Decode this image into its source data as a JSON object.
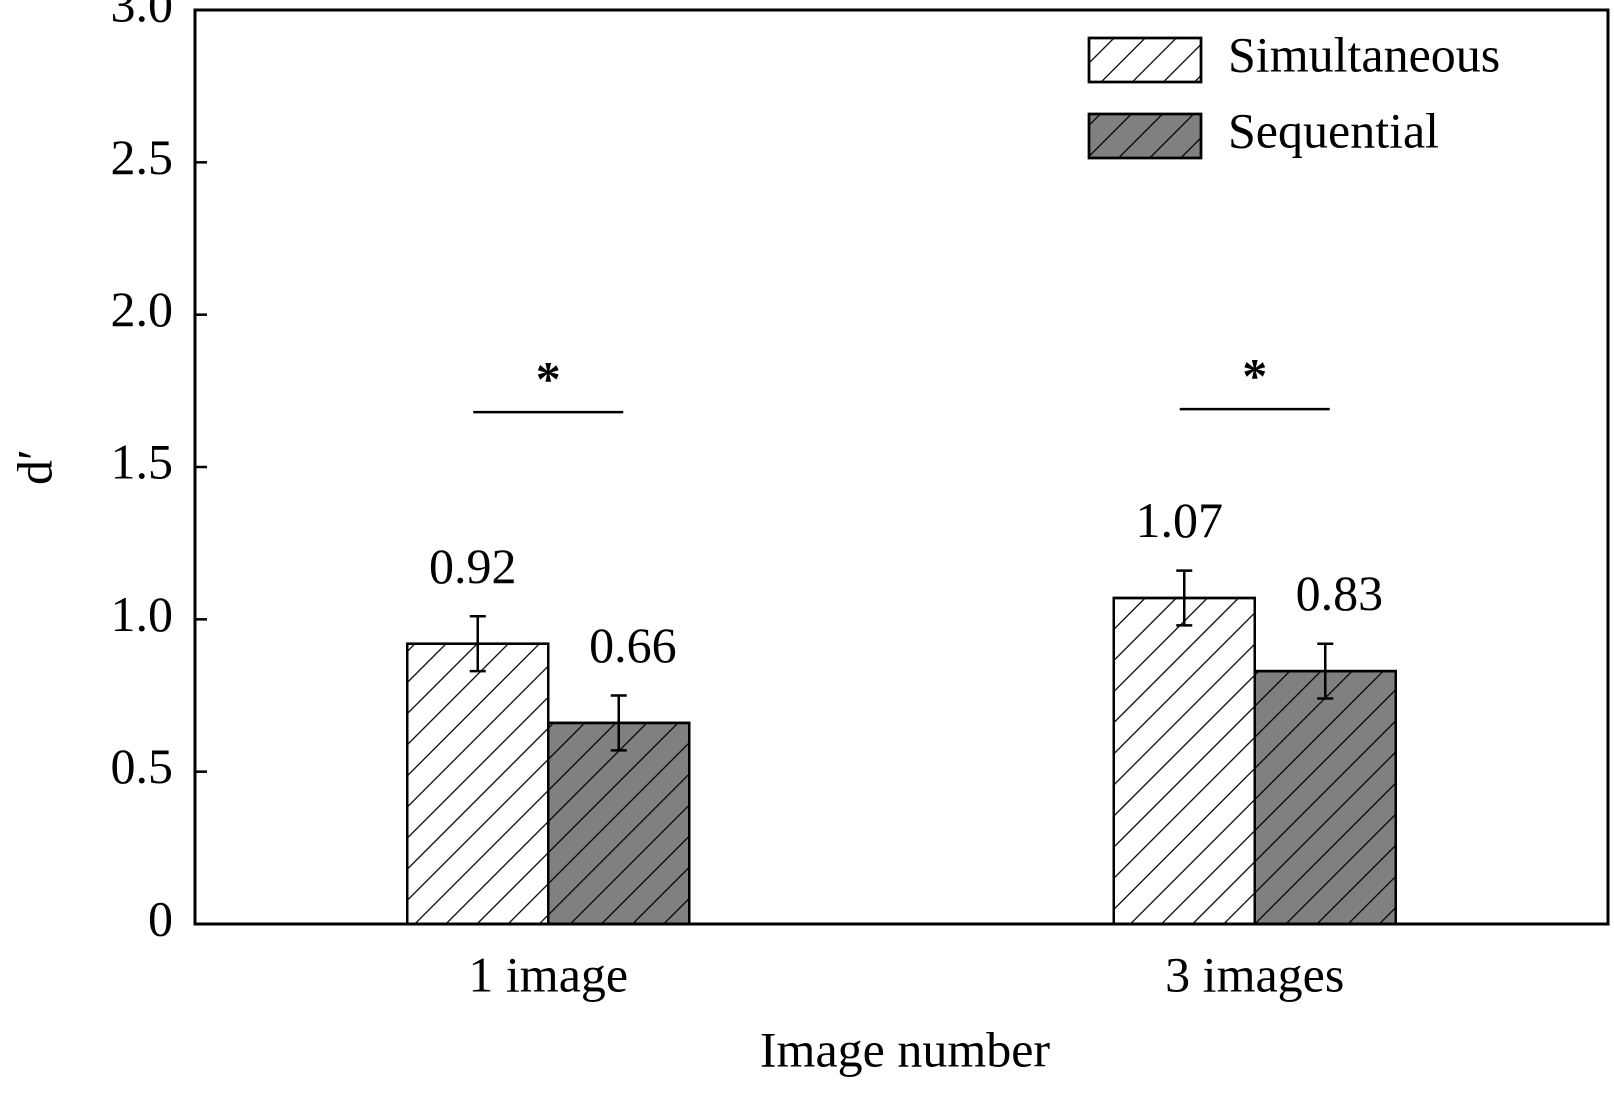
{
  "chart_data": {
    "type": "bar",
    "categories": [
      "1 image",
      "3 images"
    ],
    "series": [
      {
        "name": "Simultaneous",
        "color": "#ffffff",
        "values": [
          0.92,
          1.07
        ],
        "errors": [
          0.09,
          0.09
        ]
      },
      {
        "name": "Sequential",
        "color": "#808080",
        "values": [
          0.66,
          0.83
        ],
        "errors": [
          0.09,
          0.09
        ]
      }
    ],
    "ylabel": "d′",
    "xlabel": "Image number",
    "ylim": [
      0,
      3
    ],
    "yticks": [
      0,
      0.5,
      {
        "value": 1,
        "label": "1.0"
      },
      1.5,
      {
        "value": 2,
        "label": "2.0"
      },
      2.5,
      {
        "value": 3,
        "label": "3.0"
      }
    ],
    "hatch": true,
    "legend": "upper right",
    "annotations": [
      {
        "text": "*",
        "y": 1.68
      },
      {
        "text": "*",
        "y": 1.69
      }
    ]
  }
}
